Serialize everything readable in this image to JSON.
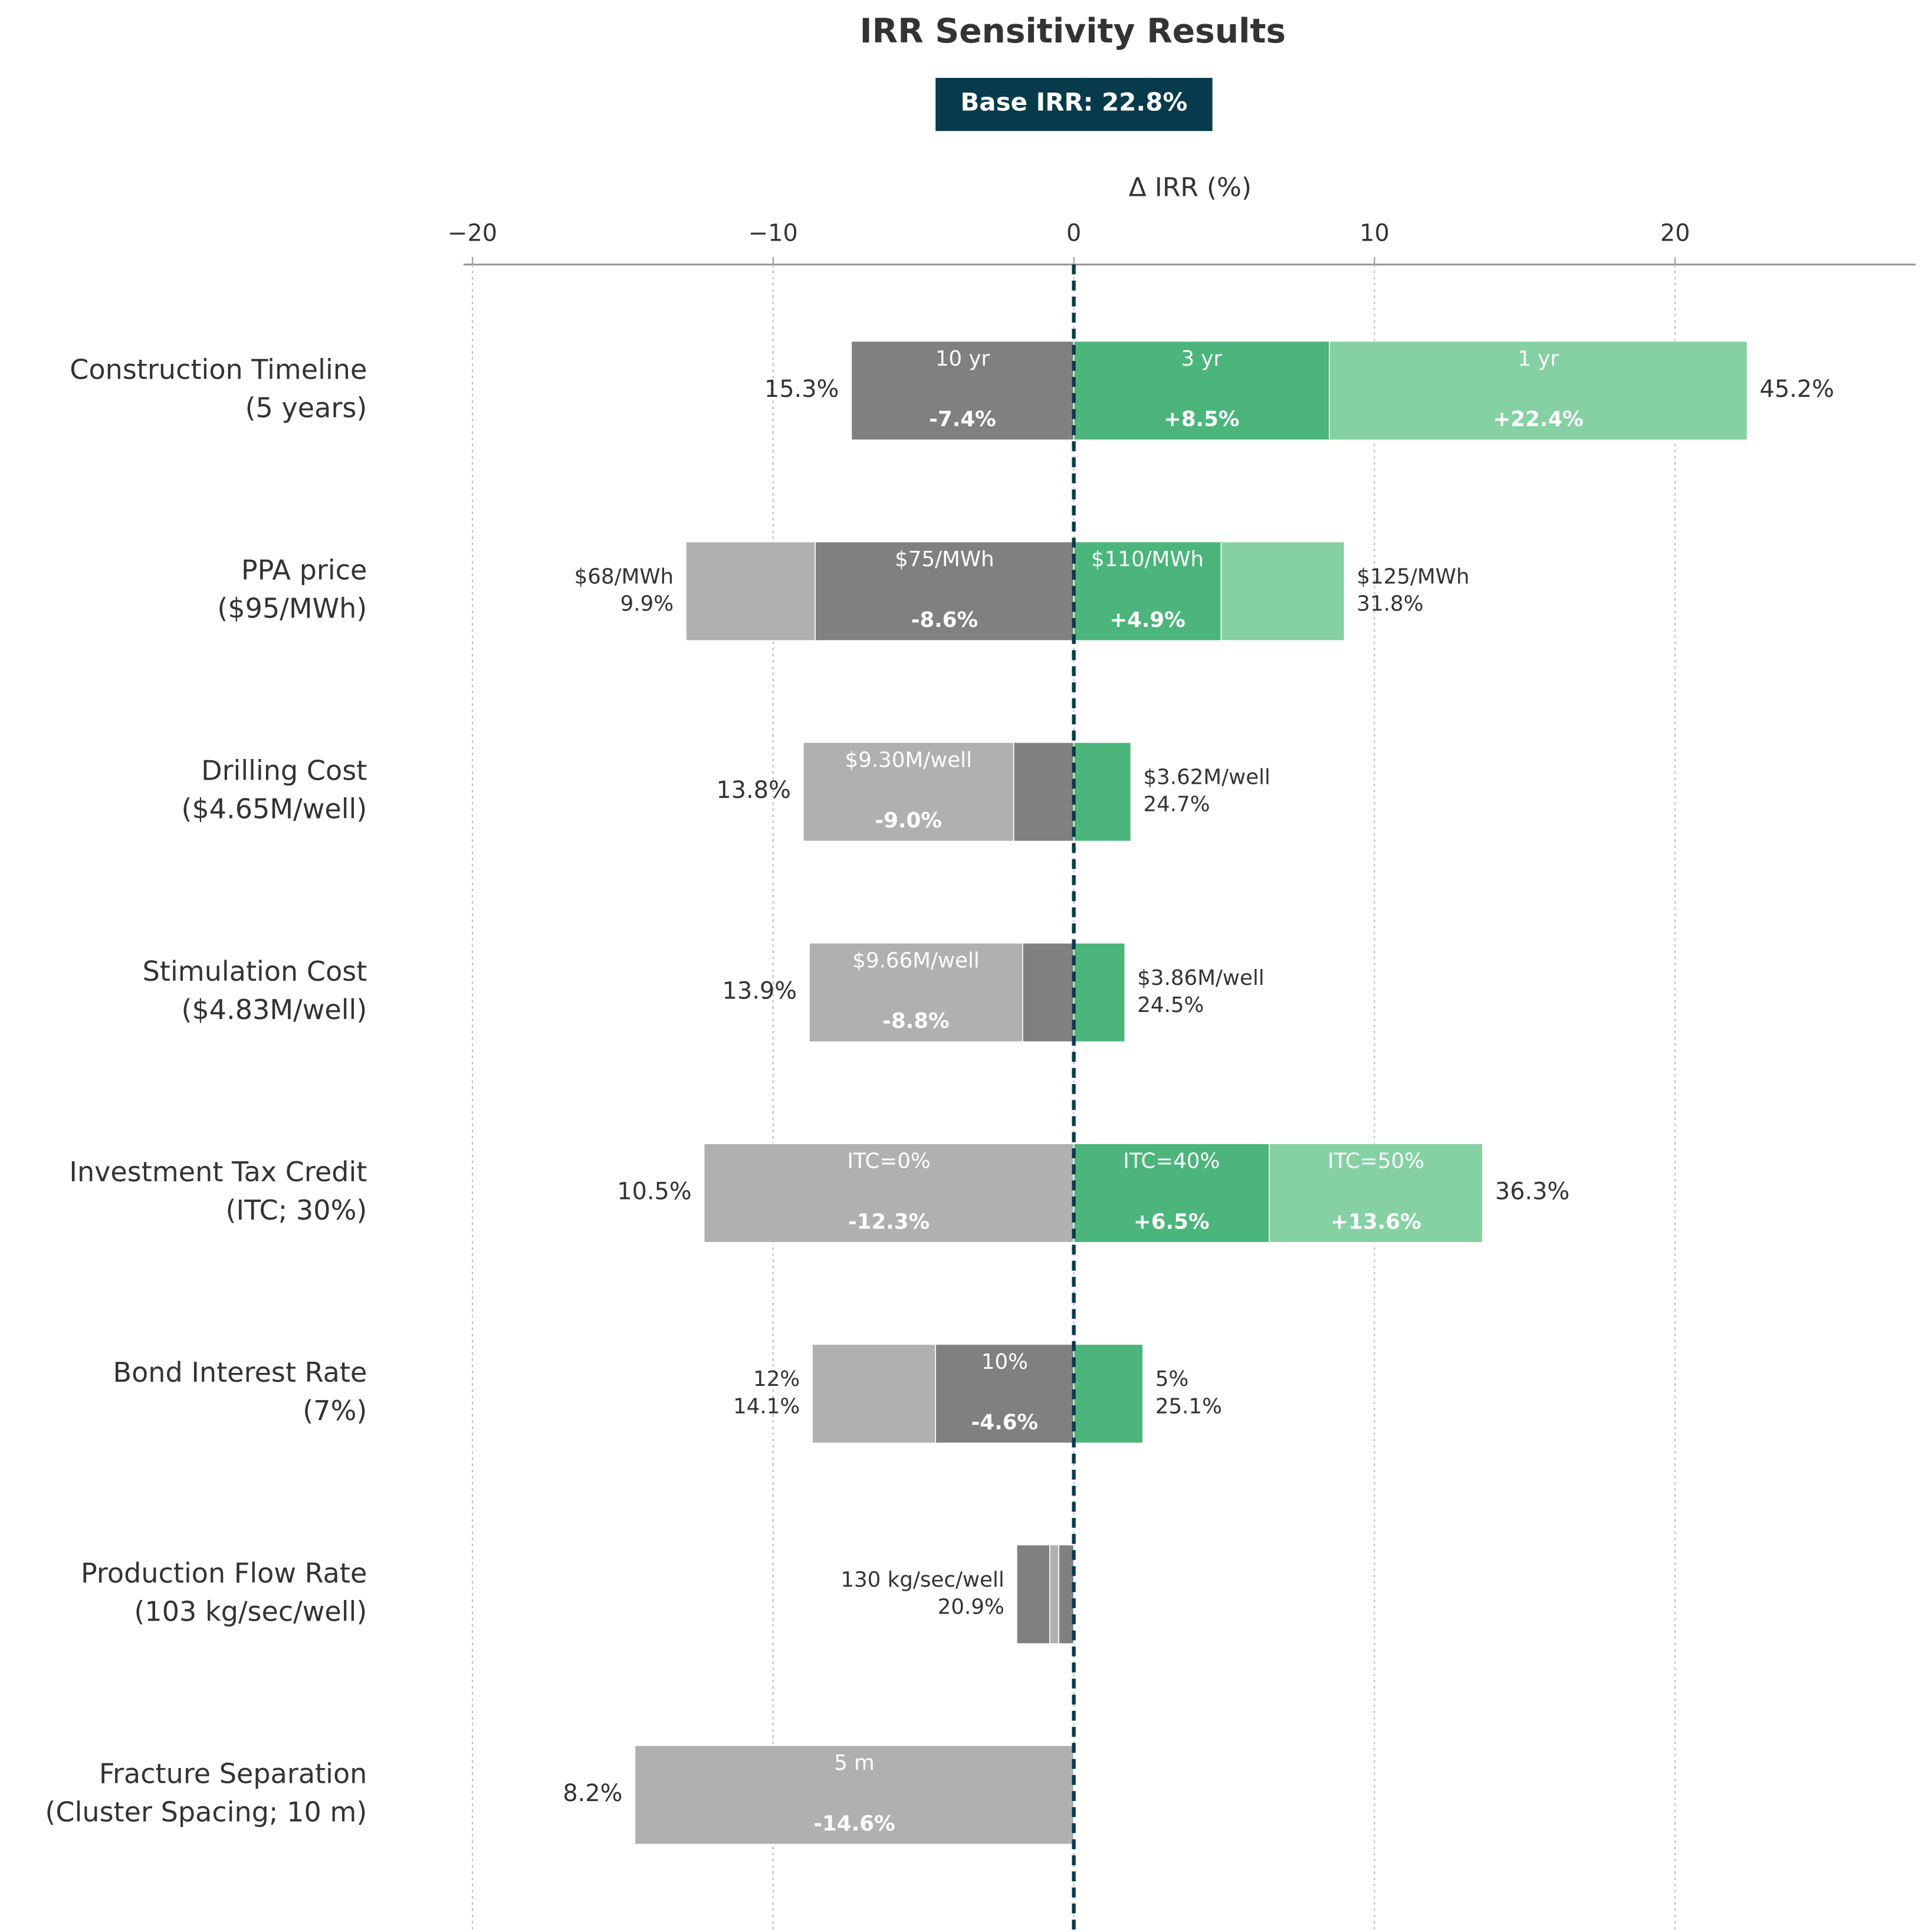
{
  "chart_data": {
    "type": "tornado",
    "title": "IRR Sensitivity Results",
    "badge": "Base IRR: 22.8%",
    "badge_color": "#073b4c",
    "xlabel": "Δ IRR (%)",
    "xlim": [
      -20.3,
      28
    ],
    "xticks": [
      {
        "value": -20,
        "label": "−20"
      },
      {
        "value": -10,
        "label": "−10"
      },
      0,
      10,
      20
    ],
    "grid": true,
    "zero_line_color": "#0b3a4a",
    "rows": [
      {
        "label": [
          "Construction Timeline",
          "(5 years)"
        ],
        "left_note": [
          "15.3%"
        ],
        "right_note": [
          "45.2%"
        ],
        "segments": [
          {
            "value": -7.4,
            "color": "#808080",
            "name": "10 yr",
            "value_label": "-7.4%"
          },
          {
            "value": 22.4,
            "color": "#85d1a4",
            "name": "1 yr",
            "value_label": "+22.4%"
          },
          {
            "value": 8.5,
            "color": "#4bb57b",
            "name": "3 yr",
            "value_label": "+8.5%"
          }
        ]
      },
      {
        "label": [
          "PPA price",
          "($95/MWh)"
        ],
        "left_note": [
          "$68/MWh",
          "9.9%"
        ],
        "right_note": [
          "$125/MWh",
          "31.8%"
        ],
        "segments": [
          {
            "value": -12.9,
            "color": "#b0b0b0"
          },
          {
            "value": -8.6,
            "color": "#808080",
            "name": "$75/MWh",
            "value_label": "-8.6%"
          },
          {
            "value": 9.0,
            "color": "#85d1a4"
          },
          {
            "value": 4.9,
            "color": "#4bb57b",
            "name": "$110/MWh",
            "value_label": "+4.9%"
          }
        ]
      },
      {
        "label": [
          "Drilling Cost",
          "($4.65M/well)"
        ],
        "left_note": [
          "13.8%"
        ],
        "right_note": [
          "$3.62M/well",
          "24.7%"
        ],
        "segments": [
          {
            "value": -9.0,
            "color": "#b0b0b0",
            "name": "$9.30M/well",
            "value_label": "-9.0%"
          },
          {
            "value": -2.0,
            "color": "#808080"
          },
          {
            "value": 1.9,
            "color": "#4bb57b"
          }
        ]
      },
      {
        "label": [
          "Stimulation Cost",
          "($4.83M/well)"
        ],
        "left_note": [
          "13.9%"
        ],
        "right_note": [
          "$3.86M/well",
          "24.5%"
        ],
        "segments": [
          {
            "value": -8.8,
            "color": "#b0b0b0",
            "name": "$9.66M/well",
            "value_label": "-8.8%"
          },
          {
            "value": -1.7,
            "color": "#808080"
          },
          {
            "value": 1.7,
            "color": "#4bb57b"
          }
        ]
      },
      {
        "label": [
          "Investment Tax Credit",
          "(ITC; 30%)"
        ],
        "left_note": [
          "10.5%"
        ],
        "right_note": [
          "36.3%"
        ],
        "segments": [
          {
            "value": -12.3,
            "color": "#b0b0b0",
            "name": "ITC=0%",
            "value_label": "-12.3%"
          },
          {
            "value": 13.6,
            "color": "#85d1a4",
            "name": "ITC=50%",
            "value_label": "+13.6%"
          },
          {
            "value": 6.5,
            "color": "#4bb57b",
            "name": "ITC=40%",
            "value_label": "+6.5%"
          }
        ]
      },
      {
        "label": [
          "Bond Interest Rate",
          "(7%)"
        ],
        "left_note": [
          "12%",
          "14.1%"
        ],
        "right_note": [
          "5%",
          "25.1%"
        ],
        "segments": [
          {
            "value": -8.7,
            "color": "#b0b0b0"
          },
          {
            "value": -4.6,
            "color": "#808080",
            "name": "10%",
            "value_label": "-4.6%"
          },
          {
            "value": 2.3,
            "color": "#4bb57b"
          }
        ]
      },
      {
        "label": [
          "Production Flow Rate",
          "(103 kg/sec/well)"
        ],
        "left_note": [
          "130 kg/sec/well",
          "20.9%"
        ],
        "segments": [
          {
            "value": -1.9,
            "color": "#808080"
          },
          {
            "value": -0.8,
            "color": "#b0b0b0"
          },
          {
            "value": -0.5,
            "color": "#808080"
          }
        ]
      },
      {
        "label": [
          "Fracture Separation",
          "(Cluster Spacing; 10 m)"
        ],
        "left_note": [
          "8.2%"
        ],
        "segments": [
          {
            "value": -14.6,
            "color": "#b0b0b0",
            "name": "5 m",
            "value_label": "-14.6%"
          }
        ]
      }
    ]
  }
}
